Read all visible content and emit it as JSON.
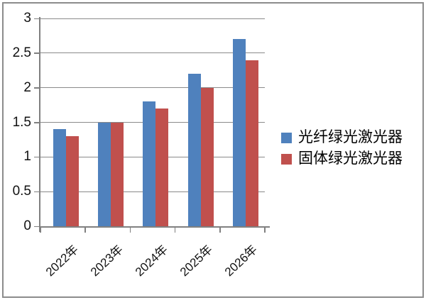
{
  "chart_data": {
    "type": "bar",
    "title": "",
    "xlabel": "",
    "ylabel": "",
    "categories": [
      "2022年",
      "2023年",
      "2024年",
      "2025年",
      "2026年"
    ],
    "series": [
      {
        "name": "光纤绿光激光器",
        "color": "#4F81BD",
        "values": [
          1.4,
          1.5,
          1.8,
          2.2,
          2.7
        ]
      },
      {
        "name": "固体绿光激光器",
        "color": "#C0504D",
        "values": [
          1.3,
          1.5,
          1.7,
          2.0,
          2.4
        ]
      }
    ],
    "ylim": [
      0,
      3
    ],
    "ytick_step": 0.5,
    "yticks": [
      0,
      0.5,
      1,
      1.5,
      2,
      2.5,
      3
    ],
    "grid": true,
    "legend_position": "right"
  },
  "colors": {
    "axis": "#808080",
    "gridline": "#8a8a8a",
    "frame_border": "#8c8c8c",
    "text": "#111111"
  }
}
